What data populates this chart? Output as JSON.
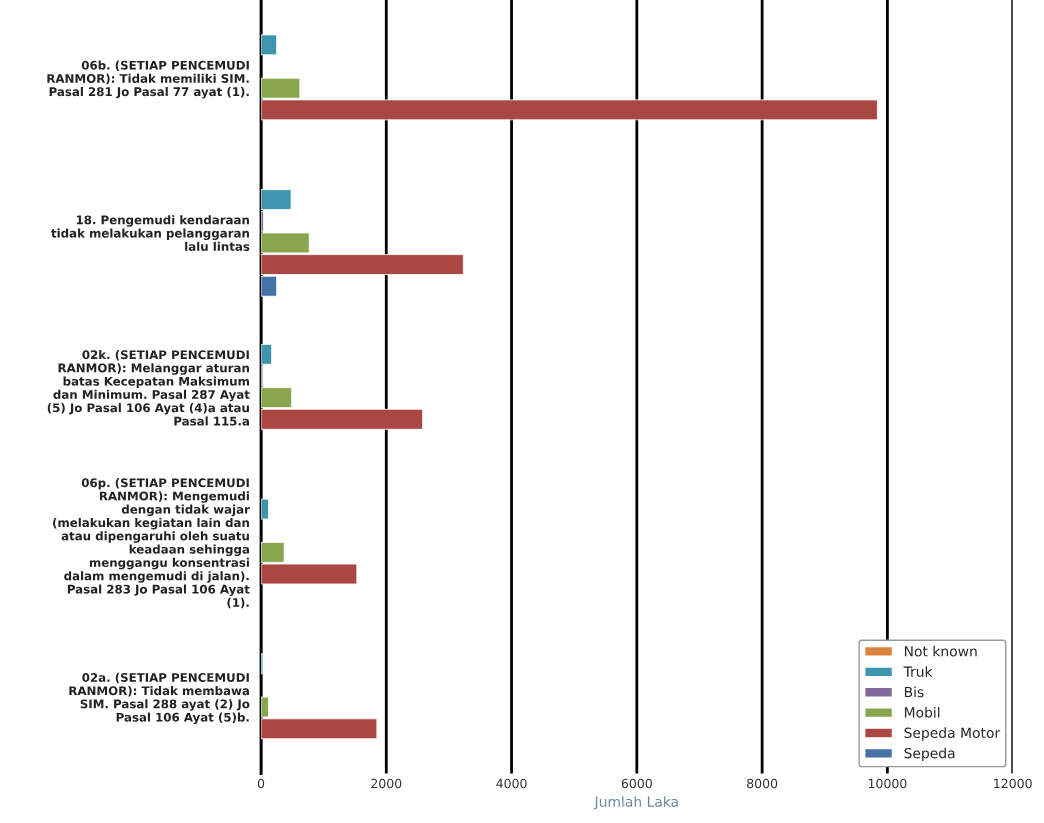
{
  "chart_data": {
    "type": "bar",
    "orientation": "horizontal",
    "xlabel": "Jumlah Laka",
    "categories": [
      "06b. (SETIAP PENCEMUDI\nRANMOR): Tidak memiliki SIM.\nPasal 281 Jo Pasal 77 ayat (1).",
      "18. Pengemudi kendaraan\ntidak melakukan pelanggaran\nlalu lintas",
      "02k. (SETIAP PENCEMUDI\nRANMOR): Melanggar aturan\nbatas Kecepatan Maksimum\ndan Minimum. Pasal 287 Ayat\n(5) Jo Pasal 106 Ayat (4)a atau\nPasal 115.a",
      "06p. (SETIAP PENCEMUDI\nRANMOR): Mengemudi\ndengan tidak wajar\n(melakukan kegiatan lain dan\natau dipengaruhi oleh suatu\nkeadaan sehingga\nmenggangu konsentrasi\ndalam mengemudi di jalan).\nPasal 283 Jo Pasal 106 Ayat\n(1).",
      "02a. (SETIAP PENCEMUDI\nRANMOR): Tidak membawa\nSIM. Pasal 288 ayat (2) Jo\nPasal 106 Ayat (5)b."
    ],
    "series": [
      {
        "name": "Not known",
        "color": "#db843d",
        "values": [
          null,
          null,
          null,
          null,
          null
        ]
      },
      {
        "name": "Truk",
        "color": "#3d96ae",
        "values": [
          250,
          480,
          170,
          120,
          30
        ]
      },
      {
        "name": "Bis",
        "color": "#80699b",
        "values": [
          null,
          40,
          30,
          null,
          null
        ]
      },
      {
        "name": "Mobil",
        "color": "#89a54e",
        "values": [
          620,
          770,
          490,
          370,
          120
        ]
      },
      {
        "name": "Sepeda Motor",
        "color": "#aa4643",
        "values": [
          9840,
          3230,
          2580,
          1530,
          1850
        ]
      },
      {
        "name": "Sepeda",
        "color": "#4572a7",
        "values": [
          null,
          250,
          null,
          null,
          null
        ]
      }
    ],
    "xlim": [
      0,
      12000
    ],
    "xticks": [
      0,
      2000,
      4000,
      6000,
      8000,
      10000,
      12000
    ],
    "grid": "x",
    "legend": "bottom right"
  }
}
